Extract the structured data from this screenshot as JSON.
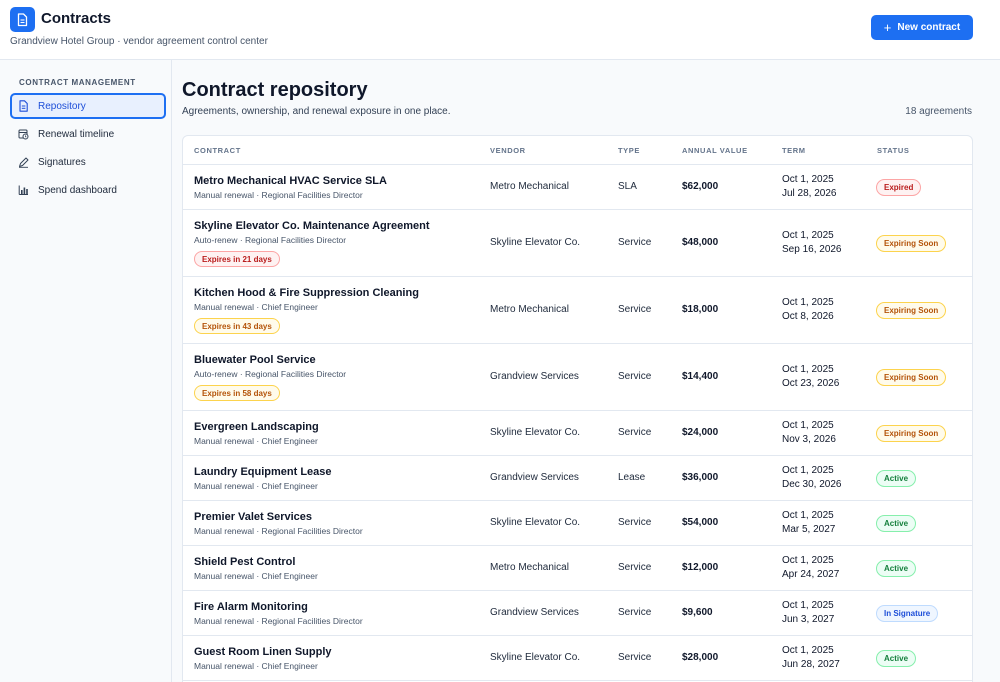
{
  "app": {
    "title": "Contracts",
    "subtitle": "Grandview Hotel Group · vendor agreement control center",
    "icon": "document-icon",
    "accent": "#1d6ff2",
    "new_button": "New contract"
  },
  "sidebar": {
    "heading": "CONTRACT MANAGEMENT",
    "items": [
      {
        "label": "Repository",
        "icon": "document-icon",
        "active": true
      },
      {
        "label": "Renewal timeline",
        "icon": "calendar-clock-icon",
        "active": false
      },
      {
        "label": "Signatures",
        "icon": "pen-icon",
        "active": false
      },
      {
        "label": "Spend dashboard",
        "icon": "bar-chart-icon",
        "active": false
      }
    ]
  },
  "main": {
    "title": "Contract repository",
    "subtitle": "Agreements, ownership, and renewal exposure in one place.",
    "count": "18 agreements",
    "columns": [
      "CONTRACT",
      "VENDOR",
      "TYPE",
      "ANNUAL VALUE",
      "TERM",
      "STATUS"
    ],
    "rows": [
      {
        "name": "Metro Mechanical HVAC Service SLA",
        "meta": "Manual renewal · Regional Facilities Director",
        "alert": "",
        "vendor": "Metro Mechanical",
        "type": "SLA",
        "value": "$62,000",
        "term_start": "Oct 1, 2025",
        "term_end": "Jul 28, 2026",
        "status": "Expired",
        "status_kind": "expired"
      },
      {
        "name": "Skyline Elevator Co. Maintenance Agreement",
        "meta": "Auto-renew · Regional Facilities Director",
        "alert": "Expires in 21 days",
        "alert_kind": "red",
        "vendor": "Skyline Elevator Co.",
        "type": "Service",
        "value": "$48,000",
        "term_start": "Oct 1, 2025",
        "term_end": "Sep 16, 2026",
        "status": "Expiring Soon",
        "status_kind": "soon"
      },
      {
        "name": "Kitchen Hood & Fire Suppression Cleaning",
        "meta": "Manual renewal · Chief Engineer",
        "alert": "Expires in 43 days",
        "alert_kind": "amber",
        "vendor": "Metro Mechanical",
        "type": "Service",
        "value": "$18,000",
        "term_start": "Oct 1, 2025",
        "term_end": "Oct 8, 2026",
        "status": "Expiring Soon",
        "status_kind": "soon"
      },
      {
        "name": "Bluewater Pool Service",
        "meta": "Auto-renew · Regional Facilities Director",
        "alert": "Expires in 58 days",
        "alert_kind": "amber",
        "vendor": "Grandview Services",
        "type": "Service",
        "value": "$14,400",
        "term_start": "Oct 1, 2025",
        "term_end": "Oct 23, 2026",
        "status": "Expiring Soon",
        "status_kind": "soon"
      },
      {
        "name": "Evergreen Landscaping",
        "meta": "Manual renewal · Chief Engineer",
        "alert": "",
        "vendor": "Skyline Elevator Co.",
        "type": "Service",
        "value": "$24,000",
        "term_start": "Oct 1, 2025",
        "term_end": "Nov 3, 2026",
        "status": "Expiring Soon",
        "status_kind": "soon"
      },
      {
        "name": "Laundry Equipment Lease",
        "meta": "Manual renewal · Chief Engineer",
        "alert": "",
        "vendor": "Grandview Services",
        "type": "Lease",
        "value": "$36,000",
        "term_start": "Oct 1, 2025",
        "term_end": "Dec 30, 2026",
        "status": "Active",
        "status_kind": "active"
      },
      {
        "name": "Premier Valet Services",
        "meta": "Manual renewal · Regional Facilities Director",
        "alert": "",
        "vendor": "Skyline Elevator Co.",
        "type": "Service",
        "value": "$54,000",
        "term_start": "Oct 1, 2025",
        "term_end": "Mar 5, 2027",
        "status": "Active",
        "status_kind": "active"
      },
      {
        "name": "Shield Pest Control",
        "meta": "Manual renewal · Chief Engineer",
        "alert": "",
        "vendor": "Metro Mechanical",
        "type": "Service",
        "value": "$12,000",
        "term_start": "Oct 1, 2025",
        "term_end": "Apr 24, 2027",
        "status": "Active",
        "status_kind": "active"
      },
      {
        "name": "Fire Alarm Monitoring",
        "meta": "Manual renewal · Regional Facilities Director",
        "alert": "",
        "vendor": "Grandview Services",
        "type": "Service",
        "value": "$9,600",
        "term_start": "Oct 1, 2025",
        "term_end": "Jun 3, 2027",
        "status": "In Signature",
        "status_kind": "sign"
      },
      {
        "name": "Guest Room Linen Supply",
        "meta": "Manual renewal · Chief Engineer",
        "alert": "",
        "vendor": "Skyline Elevator Co.",
        "type": "Service",
        "value": "$28,000",
        "term_start": "Oct 1, 2025",
        "term_end": "Jun 28, 2027",
        "status": "Active",
        "status_kind": "active"
      }
    ]
  }
}
